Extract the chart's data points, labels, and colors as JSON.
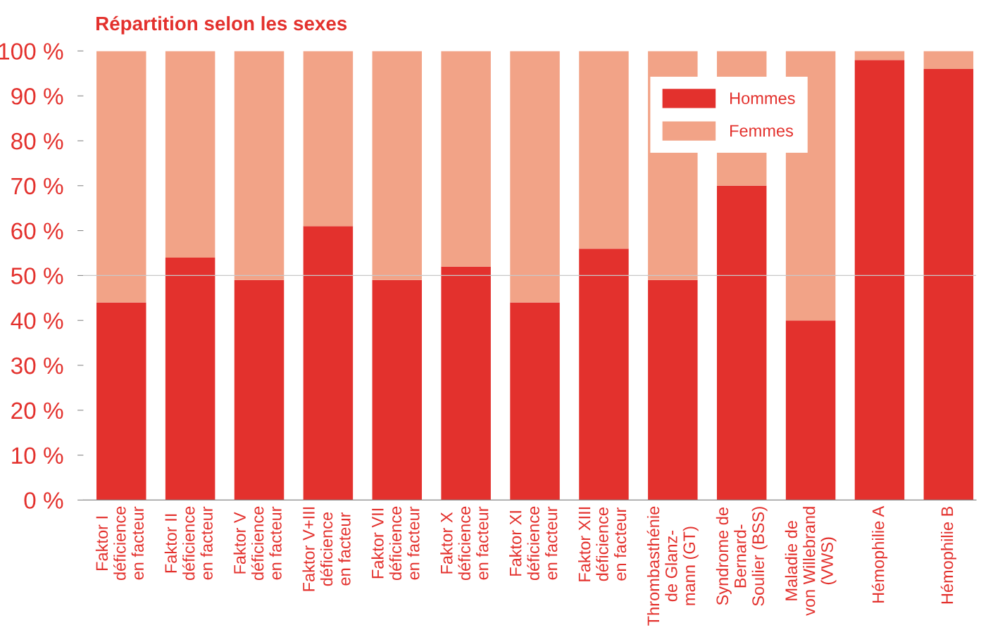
{
  "chart_data": {
    "type": "bar",
    "title": "Répartition selon les sexes",
    "stacked": true,
    "categories": [
      "Faktor I\ndéficience\nen facteur",
      "Faktor II\ndéficience\nen facteur",
      "Faktor V\ndéficience\nen facteur",
      "Faktor V+III\ndéficience\nen facteur",
      "Faktor VII\ndéficience\nen facteur",
      "Faktor X\ndéficience\nen facteur",
      "Faktor XI\ndéficience\nen facteur",
      "Faktor XIII\ndéficience\nen facteur",
      "Thrombasthénie\nde Glanz-\nmann (GT)",
      "Syndrome de\nBernard-\nSoulier (BSS)",
      "Maladie de\nvon Willebrand\n(VWS)",
      "Hémophilie A",
      "Hémophilie B"
    ],
    "series": [
      {
        "name": "Hommes",
        "color": "#e3312d",
        "values": [
          44,
          54,
          49,
          61,
          49,
          52,
          44,
          56,
          49,
          70,
          40,
          98,
          96
        ]
      },
      {
        "name": "Femmes",
        "color": "#f2a387",
        "values": [
          56,
          46,
          51,
          39,
          51,
          48,
          56,
          44,
          51,
          30,
          60,
          2,
          4
        ]
      }
    ],
    "ylim": [
      0,
      100
    ],
    "yticks": [
      {
        "value": 0,
        "label": "0 %"
      },
      {
        "value": 10,
        "label": "10 %"
      },
      {
        "value": 20,
        "label": "20 %"
      },
      {
        "value": 30,
        "label": "30 %"
      },
      {
        "value": 40,
        "label": "40 %"
      },
      {
        "value": 50,
        "label": "50 %"
      },
      {
        "value": 60,
        "label": "60 %"
      },
      {
        "value": 70,
        "label": "70 %"
      },
      {
        "value": 80,
        "label": "80 %"
      },
      {
        "value": 90,
        "label": "90 %"
      },
      {
        "value": 100,
        "label": "100 %"
      }
    ],
    "ref_lines": [
      {
        "axis": "y",
        "value": 50,
        "color": "#c8c8c8"
      }
    ],
    "legend": "top right"
  }
}
